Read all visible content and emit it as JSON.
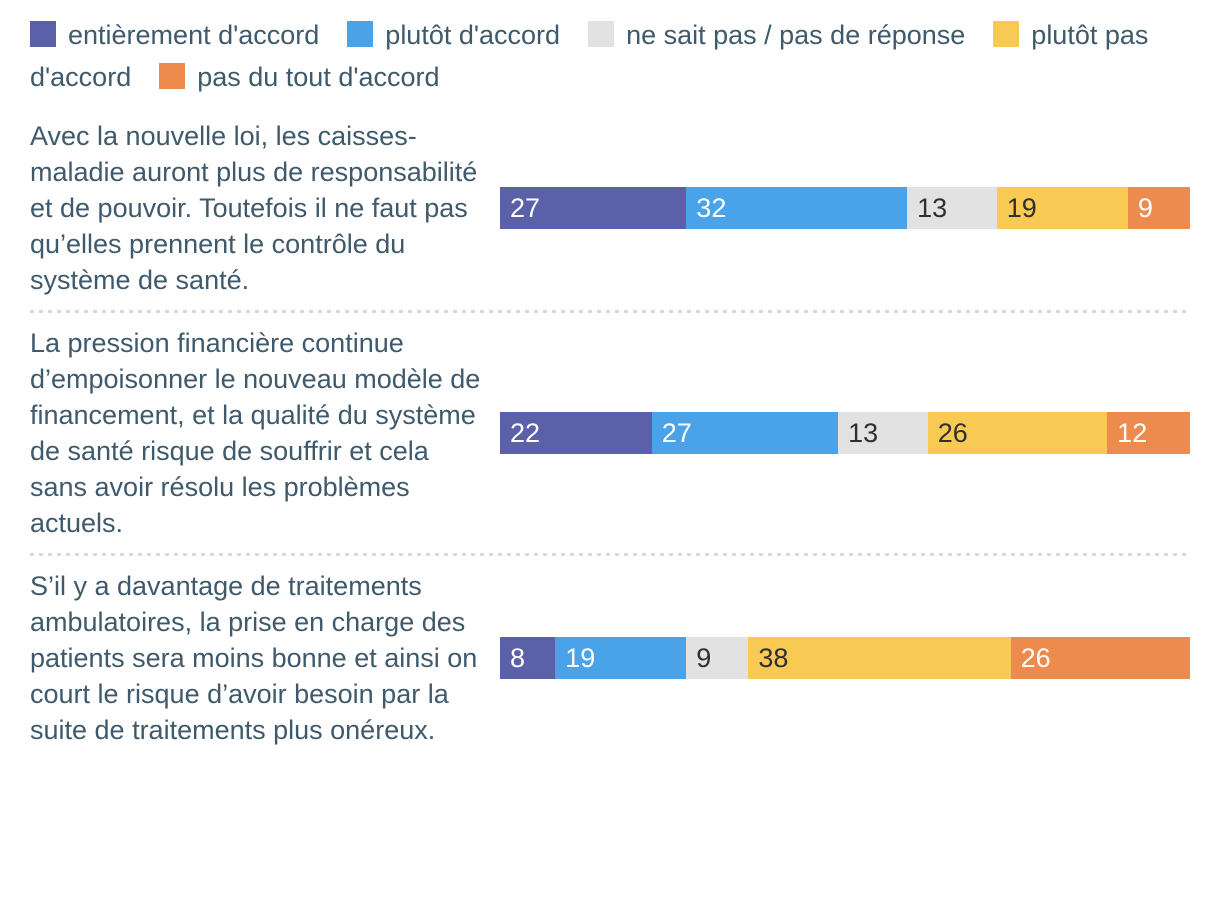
{
  "chart_data": {
    "type": "bar",
    "variant": "stacked-horizontal",
    "unit": "percent",
    "xlim": [
      0,
      100
    ],
    "grid": false,
    "legend_position": "top",
    "legend": [
      {
        "label": "entièrement d'accord",
        "color": "#5a61a8",
        "label_color": "#ffffff"
      },
      {
        "label": "plutôt d'accord",
        "color": "#4aa2e8",
        "label_color": "#ffffff"
      },
      {
        "label": "ne sait pas / pas de réponse",
        "color": "#e2e2e2",
        "label_color": "#2f2f2f"
      },
      {
        "label": "plutôt pas d'accord",
        "color": "#f8ca53",
        "label_color": "#2f2f2f"
      },
      {
        "label": "pas du tout d'accord",
        "color": "#ec8b4d",
        "label_color": "#ffffff"
      }
    ],
    "rows": [
      {
        "statement": "Avec la nouvelle loi, les caisses-maladie auront plus de responsabilité et de pouvoir. Toutefois il ne faut pas qu’elles prennent le contrôle du système de santé.",
        "values": [
          27,
          32,
          13,
          19,
          9
        ]
      },
      {
        "statement": "La pression financière continue d’empoisonner le nouveau modèle de financement, et la qualité du système de santé risque de souffrir et cela sans avoir résolu les problèmes actuels.",
        "values": [
          22,
          27,
          13,
          26,
          12
        ]
      },
      {
        "statement": "S’il y a davantage de traitements ambulatoires, la prise en charge des patients sera moins bonne et ainsi on court le risque d’avoir besoin par la suite de traitements plus onéreux.",
        "values": [
          8,
          19,
          9,
          38,
          26
        ]
      }
    ]
  },
  "styles": {
    "text_color": "#3e5a6c",
    "divider_color": "#d8d8d8",
    "background": "#ffffff"
  }
}
